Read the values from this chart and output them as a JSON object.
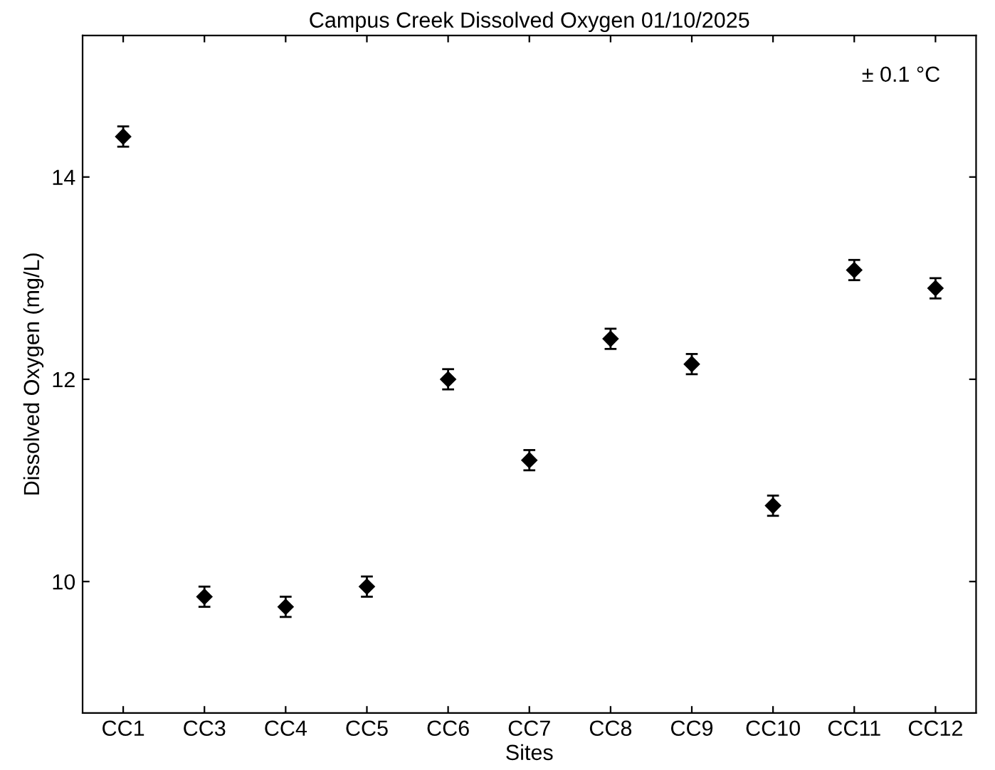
{
  "chart_data": {
    "type": "scatter",
    "title": "Campus Creek Dissolved Oxygen 01/10/2025",
    "xlabel": "Sites",
    "ylabel": "Dissolved Oxygen (mg/L)",
    "categories": [
      "CC1",
      "CC3",
      "CC4",
      "CC5",
      "CC6",
      "CC7",
      "CC8",
      "CC9",
      "CC10",
      "CC11",
      "CC12"
    ],
    "values": [
      14.4,
      9.85,
      9.75,
      9.95,
      12.0,
      11.2,
      12.4,
      12.15,
      10.75,
      13.08,
      12.9
    ],
    "errors": [
      0.1,
      0.1,
      0.1,
      0.1,
      0.1,
      0.1,
      0.1,
      0.1,
      0.1,
      0.1,
      0.1
    ],
    "color": "#000000",
    "marker": "diamond",
    "ylim": [
      8.7,
      15.4
    ],
    "yticks": [
      10,
      12,
      14
    ],
    "grid": false,
    "legend": false,
    "annotations": [
      "± 0.1 °C"
    ]
  }
}
